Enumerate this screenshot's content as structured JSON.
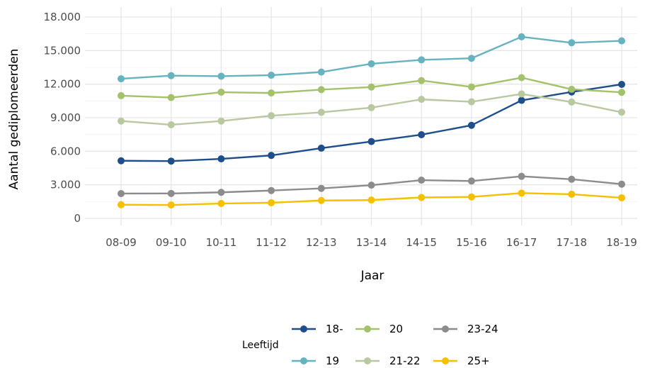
{
  "chart_data": {
    "type": "line",
    "xlabel": "Jaar",
    "ylabel": "Aantal gediplomeerden",
    "ylim": [
      0,
      18000
    ],
    "y_ticks": [
      0,
      3000,
      6000,
      9000,
      12000,
      15000,
      18000
    ],
    "y_tick_labels": [
      "0",
      "3.000",
      "6.000",
      "9.000",
      "12.000",
      "15.000",
      "18.000"
    ],
    "grid": true,
    "legend_title": "Leeftijd",
    "legend_position": "bottom",
    "categories": [
      "08-09",
      "09-10",
      "10-11",
      "11-12",
      "12-13",
      "13-14",
      "14-15",
      "15-16",
      "16-17",
      "17-18",
      "18-19"
    ],
    "series": [
      {
        "name": "18-",
        "color": "#1f4e8c",
        "values": [
          5150,
          5120,
          5320,
          5630,
          6280,
          6870,
          7480,
          8320,
          10550,
          11300,
          11980
        ]
      },
      {
        "name": "19",
        "color": "#66b3bf",
        "values": [
          12480,
          12760,
          12710,
          12800,
          13080,
          13820,
          14170,
          14310,
          16230,
          15700,
          15870
        ]
      },
      {
        "name": "20",
        "color": "#a3c26b",
        "values": [
          10970,
          10800,
          11280,
          11210,
          11510,
          11740,
          12320,
          11750,
          12580,
          11540,
          11270
        ]
      },
      {
        "name": "21-22",
        "color": "#b8c9a1",
        "values": [
          8700,
          8370,
          8700,
          9180,
          9480,
          9900,
          10640,
          10420,
          11120,
          10400,
          9490
        ]
      },
      {
        "name": "23-24",
        "color": "#8c8c8c",
        "values": [
          2220,
          2230,
          2330,
          2490,
          2680,
          2970,
          3420,
          3340,
          3760,
          3500,
          3060
        ]
      },
      {
        "name": "25+",
        "color": "#f5c000",
        "values": [
          1220,
          1200,
          1330,
          1400,
          1600,
          1640,
          1870,
          1920,
          2260,
          2160,
          1840
        ]
      }
    ]
  }
}
